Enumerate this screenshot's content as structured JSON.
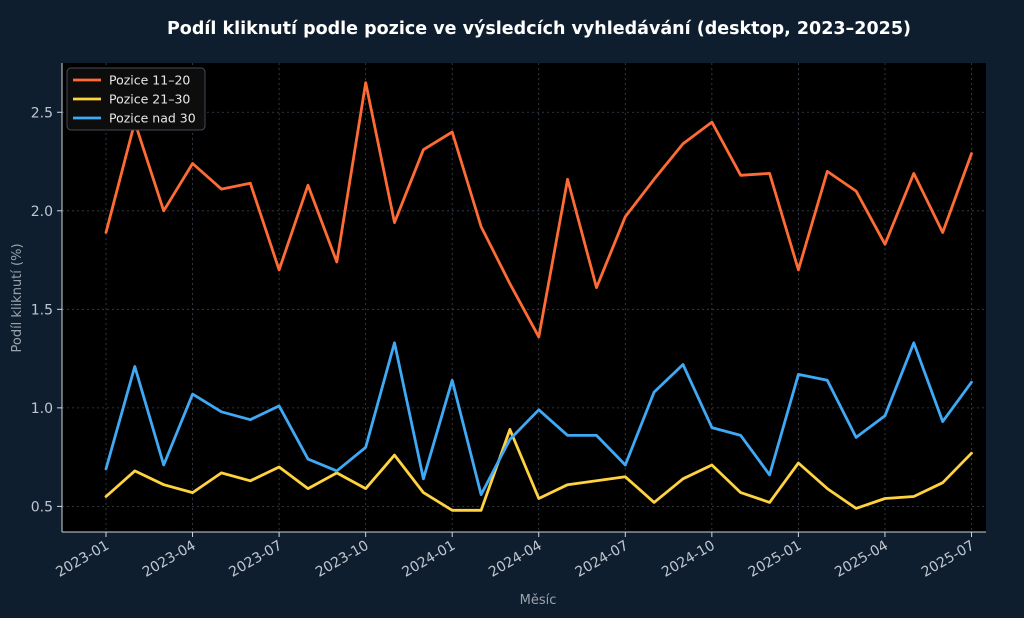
{
  "chart_data": {
    "type": "line",
    "title": "Podíl kliknutí podle pozice ve výsledcích vyhledávání (desktop, 2023–2025)",
    "xlabel": "Měsíc",
    "ylabel": "Podíl kliknutí (%)",
    "ylim": [
      0.37,
      2.75
    ],
    "yticks": [
      0.5,
      1.0,
      1.5,
      2.0,
      2.5
    ],
    "ytick_labels": [
      "0.5",
      "1.0",
      "1.5",
      "2.0",
      "2.5"
    ],
    "xtick_labels": [
      "2023-01",
      "2023-04",
      "2023-07",
      "2023-10",
      "2024-01",
      "2024-04",
      "2024-07",
      "2024-10",
      "2025-01",
      "2025-04",
      "2025-07"
    ],
    "xtick_indices": [
      0,
      3,
      6,
      9,
      12,
      15,
      18,
      21,
      24,
      27,
      30
    ],
    "x": [
      "2023-01",
      "2023-02",
      "2023-03",
      "2023-04",
      "2023-05",
      "2023-06",
      "2023-07",
      "2023-08",
      "2023-09",
      "2023-10",
      "2023-11",
      "2023-12",
      "2024-01",
      "2024-02",
      "2024-03",
      "2024-04",
      "2024-05",
      "2024-06",
      "2024-07",
      "2024-08",
      "2024-09",
      "2024-10",
      "2024-11",
      "2024-12",
      "2025-01",
      "2025-02",
      "2025-03",
      "2025-04",
      "2025-05",
      "2025-06",
      "2025-07"
    ],
    "grid": true,
    "legend_position": "top-left",
    "series": [
      {
        "name": "Pozice 11–20",
        "color": "#ff6b35",
        "values": [
          1.89,
          2.45,
          2.0,
          2.24,
          2.11,
          2.14,
          1.7,
          2.13,
          1.74,
          2.65,
          1.94,
          2.31,
          2.4,
          1.92,
          1.63,
          1.36,
          2.16,
          1.61,
          1.97,
          2.16,
          2.34,
          2.45,
          2.18,
          2.19,
          1.7,
          2.2,
          2.1,
          1.83,
          2.19,
          1.89,
          2.29
        ]
      },
      {
        "name": "Pozice 21–30",
        "color": "#ffd23f",
        "values": [
          0.55,
          0.68,
          0.61,
          0.57,
          0.67,
          0.63,
          0.7,
          0.59,
          0.67,
          0.59,
          0.76,
          0.57,
          0.48,
          0.48,
          0.89,
          0.54,
          0.61,
          0.63,
          0.65,
          0.52,
          0.64,
          0.71,
          0.57,
          0.52,
          0.72,
          0.59,
          0.49,
          0.54,
          0.55,
          0.62,
          0.77
        ]
      },
      {
        "name": "Pozice nad 30",
        "color": "#3fa9f5",
        "values": [
          0.69,
          1.21,
          0.71,
          1.07,
          0.98,
          0.94,
          1.01,
          0.74,
          0.68,
          0.8,
          1.33,
          0.64,
          1.14,
          0.56,
          0.84,
          0.99,
          0.86,
          0.86,
          0.71,
          1.08,
          1.22,
          0.9,
          0.86,
          0.66,
          1.17,
          1.14,
          0.85,
          0.96,
          1.33,
          0.93,
          1.13
        ]
      }
    ]
  }
}
